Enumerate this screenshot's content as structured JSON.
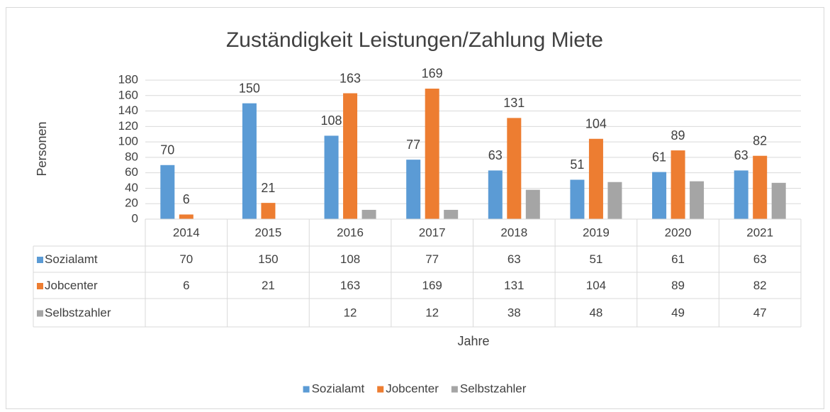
{
  "chart_data": {
    "type": "bar",
    "title": "Zuständigkeit Leistungen/Zahlung Miete",
    "x_label": "Jahre",
    "y_label": "Personen",
    "categories": [
      "2014",
      "2015",
      "2016",
      "2017",
      "2018",
      "2019",
      "2020",
      "2021"
    ],
    "series": [
      {
        "name": "Sozialamt",
        "color": "#5b9bd5",
        "data_labels": true,
        "values": [
          70,
          150,
          108,
          77,
          63,
          51,
          61,
          63
        ]
      },
      {
        "name": "Jobcenter",
        "color": "#ed7d31",
        "data_labels": true,
        "values": [
          6,
          21,
          163,
          169,
          131,
          104,
          89,
          82
        ]
      },
      {
        "name": "Selbstzahler",
        "color": "#a5a5a5",
        "data_labels": false,
        "values": [
          null,
          null,
          12,
          12,
          38,
          48,
          49,
          47
        ]
      }
    ],
    "ylim": [
      0,
      180
    ],
    "yticks": [
      0,
      20,
      40,
      60,
      80,
      100,
      120,
      140,
      160,
      180
    ],
    "grid": true,
    "data_table": true,
    "legend": "bottom"
  }
}
